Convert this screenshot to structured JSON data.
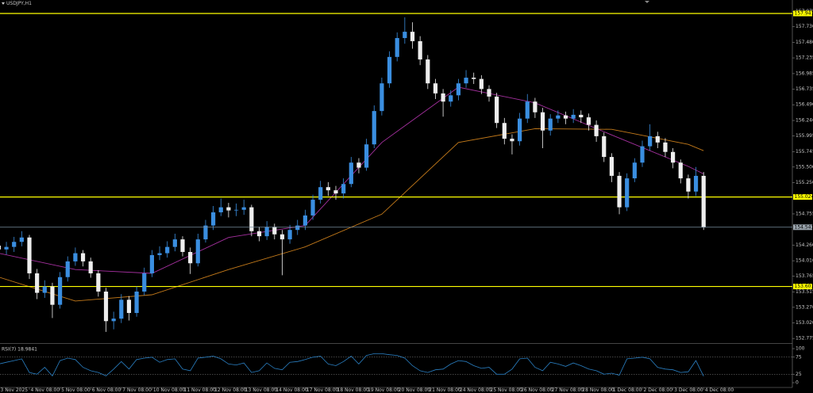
{
  "chart_data": {
    "type": "candlestick",
    "title": "USDJPY,H1",
    "up_color": "#3a8ee0",
    "down_color": "#eeeeee",
    "level_color": "#ffff00",
    "categories": [
      "3 Nov 2025",
      null,
      null,
      null,
      "4 Nov 08:00",
      null,
      null,
      null,
      "5 Nov 08:00",
      null,
      null,
      null,
      "6 Nov 08:00",
      null,
      null,
      null,
      "7 Nov 08:00",
      null,
      null,
      null,
      "10 Nov 08:00",
      null,
      null,
      null,
      "11 Nov 08:00",
      null,
      null,
      null,
      "12 Nov 08:00",
      null,
      null,
      null,
      "13 Nov 08:00",
      null,
      null,
      null,
      "14 Nov 08:00",
      null,
      null,
      null,
      "17 Nov 08:00",
      null,
      null,
      null,
      "18 Nov 08:00",
      null,
      null,
      null,
      "19 Nov 08:00",
      null,
      null,
      null,
      "20 Nov 08:00",
      null,
      null,
      null,
      "21 Nov 08:00",
      null,
      null,
      null,
      "24 Nov 08:00",
      null,
      null,
      null,
      "25 Nov 08:00",
      null,
      null,
      null,
      "26 Nov 08:00",
      null,
      null,
      null,
      "27 Nov 08:00",
      null,
      null,
      null,
      "28 Nov 08:00",
      null,
      null,
      null,
      "1 Dec 08:00",
      null,
      null,
      null,
      "2 Dec 08:00",
      null,
      null,
      null,
      "3 Dec 08:00",
      null,
      null,
      null,
      "4 Dec 08:00"
    ],
    "open": [
      154.25,
      154.19,
      154.23,
      154.31,
      154.38,
      153.81,
      153.5,
      153.6,
      153.31,
      153.75,
      154.0,
      154.13,
      154.0,
      153.81,
      153.52,
      153.05,
      153.09,
      153.39,
      153.18,
      153.52,
      153.81,
      154.1,
      154.13,
      154.23,
      154.35,
      154.15,
      153.97,
      154.35,
      154.57,
      154.78,
      154.86,
      154.81,
      154.82,
      154.86,
      154.48,
      154.4,
      154.55,
      154.43,
      154.35,
      154.5,
      154.57,
      154.73,
      154.98,
      155.18,
      155.13,
      155.08,
      155.23,
      155.57,
      155.49,
      155.86,
      156.39,
      156.83,
      157.25,
      157.55,
      157.65,
      157.5,
      157.21,
      156.83,
      156.67,
      156.54,
      156.64,
      156.83,
      156.92,
      156.9,
      156.74,
      156.62,
      156.2,
      155.95,
      155.91,
      156.27,
      156.54,
      156.37,
      156.08,
      156.27,
      156.32,
      156.27,
      156.33,
      156.29,
      156.17,
      155.99,
      155.66,
      155.36,
      154.86,
      155.32,
      155.57,
      155.83,
      155.99,
      155.89,
      155.74,
      155.57,
      155.32,
      155.11,
      155.36
    ],
    "high": [
      154.33,
      154.31,
      154.39,
      154.48,
      154.42,
      153.88,
      153.7,
      153.66,
      153.83,
      154.08,
      154.22,
      154.18,
      154.06,
      153.86,
      153.58,
      153.2,
      153.48,
      153.45,
      153.6,
      153.9,
      154.18,
      154.24,
      154.32,
      154.44,
      154.4,
      154.22,
      154.44,
      154.66,
      154.88,
      155.0,
      154.93,
      154.92,
      154.98,
      154.9,
      154.55,
      154.64,
      154.6,
      154.5,
      154.58,
      154.66,
      154.82,
      155.06,
      155.28,
      155.26,
      155.2,
      155.32,
      155.66,
      155.64,
      155.95,
      156.48,
      156.92,
      157.34,
      157.64,
      157.88,
      157.8,
      157.58,
      157.28,
      156.9,
      156.74,
      156.72,
      156.9,
      157.04,
      157.0,
      156.96,
      156.8,
      156.68,
      156.28,
      156.02,
      156.36,
      156.66,
      156.6,
      156.44,
      156.34,
      156.4,
      156.38,
      156.42,
      156.4,
      156.35,
      156.24,
      156.05,
      155.72,
      155.42,
      155.4,
      155.64,
      155.92,
      156.18,
      156.06,
      155.96,
      155.8,
      155.62,
      155.38,
      155.5,
      155.42
    ],
    "low": [
      154.11,
      154.11,
      154.15,
      154.24,
      153.72,
      153.4,
      153.42,
      153.1,
      153.25,
      153.68,
      153.93,
      153.92,
      153.74,
      153.44,
      152.88,
      152.92,
      153.02,
      153.06,
      153.12,
      153.46,
      153.75,
      154.02,
      154.06,
      154.16,
      154.08,
      153.8,
      153.92,
      154.3,
      154.5,
      154.72,
      154.7,
      154.72,
      154.74,
      154.4,
      154.32,
      154.34,
      154.35,
      153.78,
      154.28,
      154.42,
      154.5,
      154.66,
      154.92,
      155.04,
      154.98,
      155.0,
      155.18,
      155.4,
      155.44,
      155.8,
      156.32,
      156.76,
      157.18,
      157.46,
      157.38,
      157.12,
      156.74,
      156.58,
      156.3,
      156.46,
      156.56,
      156.76,
      156.82,
      156.66,
      156.54,
      156.12,
      155.86,
      155.7,
      155.84,
      156.2,
      156.28,
      155.8,
      156.0,
      156.2,
      156.18,
      156.2,
      156.2,
      156.08,
      155.9,
      155.58,
      155.26,
      154.75,
      154.8,
      155.26,
      155.5,
      155.76,
      155.8,
      155.66,
      155.48,
      155.24,
      155.0,
      155.04,
      154.5
    ],
    "close": [
      154.19,
      154.23,
      154.31,
      154.38,
      153.81,
      153.5,
      153.6,
      153.31,
      153.75,
      154.0,
      154.13,
      154.0,
      153.81,
      153.52,
      153.05,
      153.09,
      153.39,
      153.18,
      153.52,
      153.81,
      154.1,
      154.13,
      154.23,
      154.35,
      154.15,
      153.97,
      154.35,
      154.57,
      154.78,
      154.86,
      154.81,
      154.82,
      154.86,
      154.48,
      154.4,
      154.55,
      154.43,
      154.35,
      154.5,
      154.57,
      154.73,
      154.98,
      155.18,
      155.13,
      155.08,
      155.23,
      155.57,
      155.49,
      155.86,
      156.39,
      156.83,
      157.25,
      157.55,
      157.65,
      157.5,
      157.21,
      156.83,
      156.67,
      156.54,
      156.64,
      156.83,
      156.92,
      156.9,
      156.74,
      156.62,
      156.2,
      155.95,
      155.91,
      156.27,
      156.54,
      156.37,
      156.08,
      156.27,
      156.32,
      156.27,
      156.33,
      156.29,
      156.17,
      155.99,
      155.66,
      155.36,
      154.86,
      155.32,
      155.57,
      155.83,
      155.99,
      155.89,
      155.74,
      155.57,
      155.32,
      155.11,
      155.36,
      154.54
    ],
    "ylim": [
      152.714,
      158.092
    ],
    "yticks": [
      {
        "value": 157.975,
        "label": "157.975"
      },
      {
        "value": 157.73,
        "label": "157.730"
      },
      {
        "value": 157.48,
        "label": "157.480"
      },
      {
        "value": 157.235,
        "label": "157.235"
      },
      {
        "value": 156.985,
        "label": "156.985"
      },
      {
        "value": 156.735,
        "label": "156.735"
      },
      {
        "value": 156.49,
        "label": "156.490"
      },
      {
        "value": 156.24,
        "label": "156.240"
      },
      {
        "value": 155.995,
        "label": "155.995"
      },
      {
        "value": 155.745,
        "label": "155.745"
      },
      {
        "value": 155.5,
        "label": "155.500"
      },
      {
        "value": 155.25,
        "label": "155.250"
      },
      {
        "value": 154.755,
        "label": "154.755"
      },
      {
        "value": 154.26,
        "label": "154.260"
      },
      {
        "value": 154.01,
        "label": "154.010"
      },
      {
        "value": 153.765,
        "label": "153.765"
      },
      {
        "value": 153.515,
        "label": "153.515"
      },
      {
        "value": 153.27,
        "label": "153.270"
      },
      {
        "value": 153.02,
        "label": "153.020"
      },
      {
        "value": 152.775,
        "label": "152.775"
      }
    ],
    "levels": [
      {
        "value": 157.941,
        "label": "157.941"
      },
      {
        "value": 155.024,
        "label": "155.024"
      },
      {
        "value": 153.601,
        "label": "153.601"
      }
    ],
    "current": {
      "value": 154.543,
      "label": "154.543"
    },
    "overlays": [
      {
        "color": "#c47a1a",
        "x": [
          0,
          10,
          20,
          30,
          40,
          50,
          60,
          70,
          80,
          90,
          92
        ],
        "values": [
          153.75,
          153.37,
          153.47,
          153.87,
          154.23,
          154.75,
          155.89,
          156.11,
          156.1,
          155.86,
          155.76
        ]
      },
      {
        "color": "#a5309f",
        "x": [
          0,
          10,
          20,
          30,
          40,
          50,
          60,
          70,
          80,
          90,
          92
        ],
        "values": [
          154.13,
          153.87,
          153.81,
          154.38,
          154.57,
          155.89,
          156.77,
          156.52,
          156.01,
          155.51,
          155.39
        ]
      }
    ],
    "rsi": {
      "title": "RSI(7) 18.9841",
      "color": "#2a80c4",
      "ylim": [
        0,
        100
      ],
      "yticks": [
        100,
        75,
        25,
        0
      ],
      "values": [
        55,
        60,
        65,
        70,
        30,
        25,
        45,
        20,
        65,
        72,
        68,
        45,
        35,
        30,
        20,
        40,
        62,
        40,
        68,
        72,
        75,
        60,
        68,
        70,
        40,
        35,
        72,
        75,
        78,
        70,
        55,
        52,
        58,
        30,
        35,
        58,
        42,
        38,
        60,
        62,
        68,
        75,
        78,
        55,
        50,
        62,
        78,
        55,
        80,
        85,
        85,
        82,
        80,
        72,
        50,
        35,
        30,
        38,
        40,
        55,
        65,
        62,
        50,
        42,
        45,
        25,
        25,
        40,
        70,
        72,
        45,
        35,
        60,
        55,
        48,
        58,
        50,
        40,
        35,
        25,
        28,
        22,
        70,
        72,
        75,
        70,
        45,
        40,
        38,
        30,
        32,
        65,
        18.98
      ]
    }
  }
}
